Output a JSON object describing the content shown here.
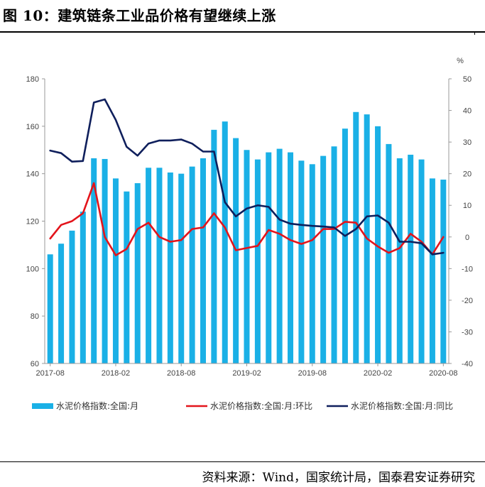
{
  "figure": {
    "title": "图 10：建筑链条工业品价格有望继续上涨",
    "source": "资料来源：Wind，国家统计局，国泰君安证券研究"
  },
  "chart_data": {
    "type": "bar+line",
    "title": "",
    "x": [
      "2017-08",
      "2017-09",
      "2017-10",
      "2017-11",
      "2017-12",
      "2018-01",
      "2018-02",
      "2018-03",
      "2018-04",
      "2018-05",
      "2018-06",
      "2018-07",
      "2018-08",
      "2018-09",
      "2018-10",
      "2018-11",
      "2018-12",
      "2019-01",
      "2019-02",
      "2019-03",
      "2019-04",
      "2019-05",
      "2019-06",
      "2019-07",
      "2019-08",
      "2019-09",
      "2019-10",
      "2019-11",
      "2019-12",
      "2020-01",
      "2020-02",
      "2020-03",
      "2020-04",
      "2020-05",
      "2020-06",
      "2020-07",
      "2020-08"
    ],
    "x_tick_labels": [
      "2017-08",
      "2018-02",
      "2018-08",
      "2019-02",
      "2019-08",
      "2020-02",
      "2020-08"
    ],
    "left_axis": {
      "range": [
        60,
        180
      ],
      "ticks": [
        "60",
        "80",
        "100",
        "120",
        "140",
        "160",
        "180"
      ]
    },
    "right_axis": {
      "unit": "%",
      "range": [
        -40,
        50
      ],
      "ticks": [
        "-40",
        "-30",
        "-20",
        "-10",
        "0",
        "10",
        "20",
        "30",
        "40",
        "50"
      ]
    },
    "series": [
      {
        "name": "水泥价格指数:全国:月",
        "kind": "bar",
        "axis": "left",
        "color": "#1ab0e6",
        "values": [
          106,
          110.5,
          116,
          124,
          146.5,
          146.2,
          138,
          132.5,
          136,
          142.5,
          142.5,
          140.5,
          140,
          143,
          146.5,
          158.5,
          162,
          155,
          150,
          146,
          149,
          150.5,
          149,
          145.5,
          144,
          147.5,
          151.5,
          159,
          166,
          165,
          160,
          152.5,
          146.5,
          148,
          146,
          138,
          137.5
        ]
      },
      {
        "name": "水泥价格指数:全国:月:环比",
        "kind": "line",
        "axis": "right",
        "color": "#e3141b",
        "values": [
          -0.5,
          3.8,
          5,
          7.5,
          17,
          0,
          -5.8,
          -3.8,
          2.5,
          4.5,
          0,
          -1.5,
          -1,
          2.5,
          3,
          7.5,
          3,
          -4.2,
          -3.5,
          -2.8,
          2.2,
          1,
          -1,
          -2.2,
          -1,
          2.5,
          2.5,
          4.8,
          4.5,
          -0.5,
          -3,
          -5,
          -3.5,
          1,
          -1.5,
          -5.5,
          0
        ]
      },
      {
        "name": "水泥价格指数:全国:月:同比",
        "kind": "line",
        "axis": "right",
        "color": "#0f1f5c",
        "values": [
          27.3,
          26.5,
          23.8,
          24,
          42.5,
          43.5,
          37,
          28.5,
          25.7,
          29.5,
          30.5,
          30.5,
          30.8,
          29.5,
          27,
          27,
          11,
          6.5,
          9,
          10,
          9.5,
          5.5,
          4.2,
          3.8,
          3.5,
          3.3,
          3,
          0.3,
          2.5,
          6.5,
          6.8,
          4.5,
          -1.5,
          -1.5,
          -2,
          -5.5,
          -5
        ]
      }
    ],
    "legend": {
      "position": "bottom"
    },
    "grid": false
  }
}
